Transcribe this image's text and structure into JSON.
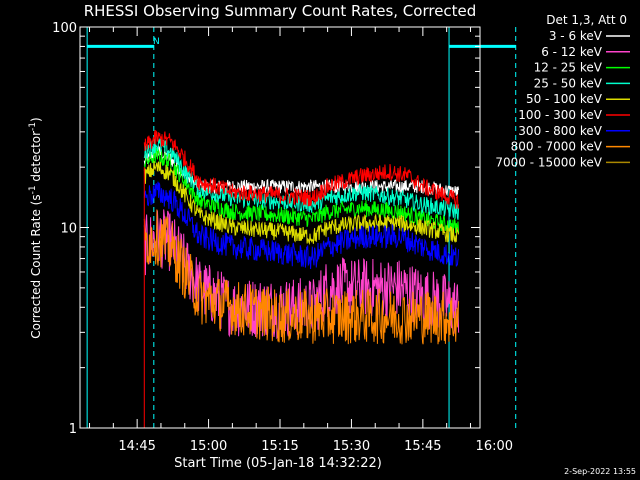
{
  "chart_data": {
    "type": "line",
    "title": "RHESSI Observing Summary Count Rates, Corrected",
    "xlabel": "Start Time (05-Jan-18 14:32:22)",
    "ylabel": "Corrected Count Rate (s",
    "ylabel_sup1": "-1",
    "ylabel_mid": " detector",
    "ylabel_sup2": "-1",
    "ylabel_end": ")",
    "yscale": "log",
    "ylim": [
      1,
      100
    ],
    "y_ticks": [
      {
        "value": 1,
        "label": "1"
      },
      {
        "value": 10,
        "label": "10"
      },
      {
        "value": 100,
        "label": "100"
      }
    ],
    "x_range_minutes": [
      -27,
      57
    ],
    "x_ticks": [
      {
        "minute": -15,
        "label": "14:45"
      },
      {
        "minute": 0,
        "label": "15:00"
      },
      {
        "minute": 15,
        "label": "15:15"
      },
      {
        "minute": 30,
        "label": "15:30"
      },
      {
        "minute": 45,
        "label": "15:45"
      },
      {
        "minute": 60,
        "label": "16:00"
      }
    ],
    "legend_title": "Det 1,3, Att 0",
    "legend_position": "top-right",
    "date_stamp": "2-Sep-2022 13:55",
    "night_marker_label": "N",
    "markers": {
      "solid_cyan_minutes": [
        -25.5,
        50.5
      ],
      "dashed_cyan_minutes": [
        -11.5,
        64.5
      ],
      "bars": [
        {
          "from_minute": -25.5,
          "to_minute": -11.5,
          "value": 80
        },
        {
          "from_minute": 50.5,
          "to_minute": 64.5,
          "value": 80
        }
      ]
    },
    "data_window_minutes": [
      -13.5,
      52.5
    ],
    "series": [
      {
        "name": "3 - 6 keV",
        "color": "#ffffff",
        "points": [
          [
            -13.5,
            21
          ],
          [
            -11,
            24
          ],
          [
            -8,
            22
          ],
          [
            -5,
            18
          ],
          [
            -2,
            16
          ],
          [
            5,
            16
          ],
          [
            15,
            16
          ],
          [
            25,
            16
          ],
          [
            32,
            16
          ],
          [
            40,
            16
          ],
          [
            45,
            16
          ],
          [
            52.5,
            15
          ]
        ]
      },
      {
        "name": "6 - 12 keV",
        "color": "#ff44cc",
        "points": [
          [
            -13.5,
            8
          ],
          [
            -11,
            9
          ],
          [
            -8,
            8.5
          ],
          [
            -5,
            6.5
          ],
          [
            -2,
            5
          ],
          [
            5,
            4
          ],
          [
            15,
            4
          ],
          [
            22,
            4
          ],
          [
            25,
            5
          ],
          [
            32,
            5
          ],
          [
            40,
            5
          ],
          [
            45,
            4.5
          ],
          [
            52.5,
            4
          ]
        ]
      },
      {
        "name": "12 - 25 keV",
        "color": "#00ff00",
        "points": [
          [
            -13.5,
            21
          ],
          [
            -11,
            23
          ],
          [
            -8,
            21
          ],
          [
            -5,
            17
          ],
          [
            -2,
            13.5
          ],
          [
            5,
            12
          ],
          [
            15,
            11.5
          ],
          [
            22,
            11
          ],
          [
            25,
            12
          ],
          [
            32,
            12.5
          ],
          [
            40,
            12
          ],
          [
            45,
            11
          ],
          [
            52.5,
            10
          ]
        ]
      },
      {
        "name": "25 - 50 keV",
        "color": "#00ffcc",
        "points": [
          [
            -13.5,
            24
          ],
          [
            -11,
            26
          ],
          [
            -8,
            24
          ],
          [
            -5,
            19
          ],
          [
            -2,
            15.5
          ],
          [
            5,
            14
          ],
          [
            15,
            13.5
          ],
          [
            22,
            13
          ],
          [
            25,
            14
          ],
          [
            32,
            15
          ],
          [
            40,
            14
          ],
          [
            45,
            13
          ],
          [
            52.5,
            12
          ]
        ]
      },
      {
        "name": "50 - 100 keV",
        "color": "#dddd00",
        "points": [
          [
            -13.5,
            18
          ],
          [
            -11,
            20
          ],
          [
            -8,
            18.5
          ],
          [
            -5,
            14.5
          ],
          [
            -2,
            11.5
          ],
          [
            5,
            10
          ],
          [
            15,
            9.5
          ],
          [
            22,
            9
          ],
          [
            25,
            10
          ],
          [
            32,
            10.5
          ],
          [
            40,
            10.5
          ],
          [
            45,
            10
          ],
          [
            52.5,
            9
          ]
        ]
      },
      {
        "name": "100 - 300 keV",
        "color": "#ff0000",
        "points": [
          [
            -13.5,
            25
          ],
          [
            -11,
            28
          ],
          [
            -8,
            27
          ],
          [
            -5,
            22
          ],
          [
            -2,
            17
          ],
          [
            5,
            15
          ],
          [
            15,
            14.5
          ],
          [
            22,
            14
          ],
          [
            25,
            16
          ],
          [
            32,
            18
          ],
          [
            38,
            19
          ],
          [
            42,
            18
          ],
          [
            45,
            16
          ],
          [
            52.5,
            13.5
          ]
        ]
      },
      {
        "name": "300 - 800 keV",
        "color": "#0000ff",
        "points": [
          [
            -13.5,
            14
          ],
          [
            -11,
            15
          ],
          [
            -8,
            14
          ],
          [
            -5,
            11.5
          ],
          [
            -2,
            9
          ],
          [
            5,
            8
          ],
          [
            15,
            7.5
          ],
          [
            22,
            7
          ],
          [
            25,
            8
          ],
          [
            32,
            9
          ],
          [
            40,
            9
          ],
          [
            45,
            8
          ],
          [
            52.5,
            7
          ]
        ]
      },
      {
        "name": "800 - 7000 keV",
        "color": "#ff8800",
        "points": [
          [
            -13.5,
            8.5
          ],
          [
            -11,
            9
          ],
          [
            -8,
            8
          ],
          [
            -5,
            6
          ],
          [
            -2,
            4.5
          ],
          [
            5,
            4
          ],
          [
            15,
            3.6
          ],
          [
            25,
            3.6
          ],
          [
            32,
            3.6
          ],
          [
            40,
            3.6
          ],
          [
            45,
            3.6
          ],
          [
            52.5,
            3.5
          ]
        ]
      },
      {
        "name": "7000 - 15000 keV",
        "color": "#aa8800",
        "points": []
      }
    ]
  }
}
